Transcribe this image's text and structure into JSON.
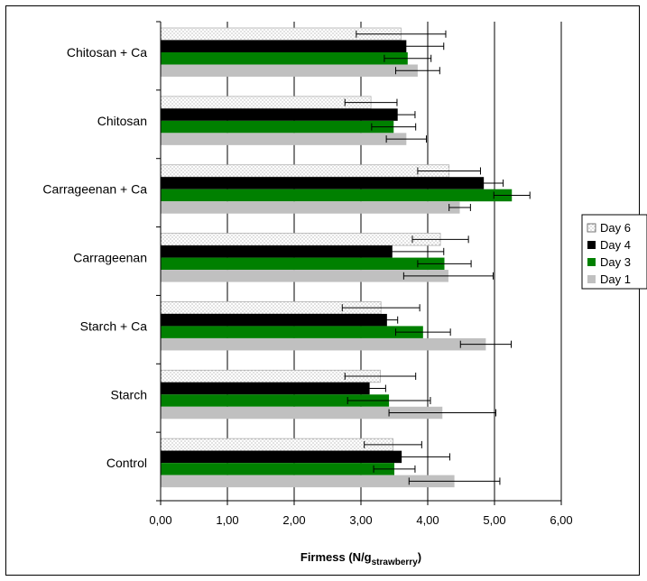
{
  "chart_data": {
    "type": "bar",
    "orientation": "horizontal",
    "categories": [
      "Control",
      "Starch",
      "Starch + Ca",
      "Carrageenan",
      "Carrageenan + Ca",
      "Chitosan",
      "Chitosan + Ca"
    ],
    "series": [
      {
        "name": "Day 1",
        "color": "#c0c0c0",
        "values": [
          4.4,
          4.22,
          4.87,
          4.31,
          4.48,
          3.68,
          3.85
        ],
        "errors": [
          0.68,
          0.8,
          0.38,
          0.67,
          0.16,
          0.3,
          0.33
        ]
      },
      {
        "name": "Day 3",
        "color": "#008000",
        "values": [
          3.5,
          3.42,
          3.93,
          4.25,
          5.26,
          3.49,
          3.7
        ],
        "errors": [
          0.31,
          0.62,
          0.41,
          0.4,
          0.27,
          0.33,
          0.35
        ]
      },
      {
        "name": "Day 4",
        "color": "#000000",
        "values": [
          3.61,
          3.13,
          3.39,
          3.47,
          4.84,
          3.55,
          3.68
        ],
        "errors": [
          0.72,
          0.24,
          0.16,
          0.77,
          0.29,
          0.26,
          0.56
        ]
      },
      {
        "name": "Day 6",
        "color": "#ffffff",
        "pattern": "dots",
        "values": [
          3.48,
          3.29,
          3.3,
          4.19,
          4.32,
          3.15,
          3.6
        ],
        "errors": [
          0.43,
          0.53,
          0.58,
          0.42,
          0.47,
          0.39,
          0.67
        ]
      }
    ],
    "xlim": [
      0,
      6
    ],
    "xticks": [
      "0,00",
      "1,00",
      "2,00",
      "3,00",
      "4,00",
      "5,00",
      "6,00"
    ],
    "xlabel_main": "Firmess (N/g",
    "xlabel_sub": "strawberry",
    "xlabel_end": ")",
    "legend_position": "right",
    "legend_order": [
      "Day 6",
      "Day 4",
      "Day 3",
      "Day 1"
    ],
    "grid": "vertical"
  }
}
